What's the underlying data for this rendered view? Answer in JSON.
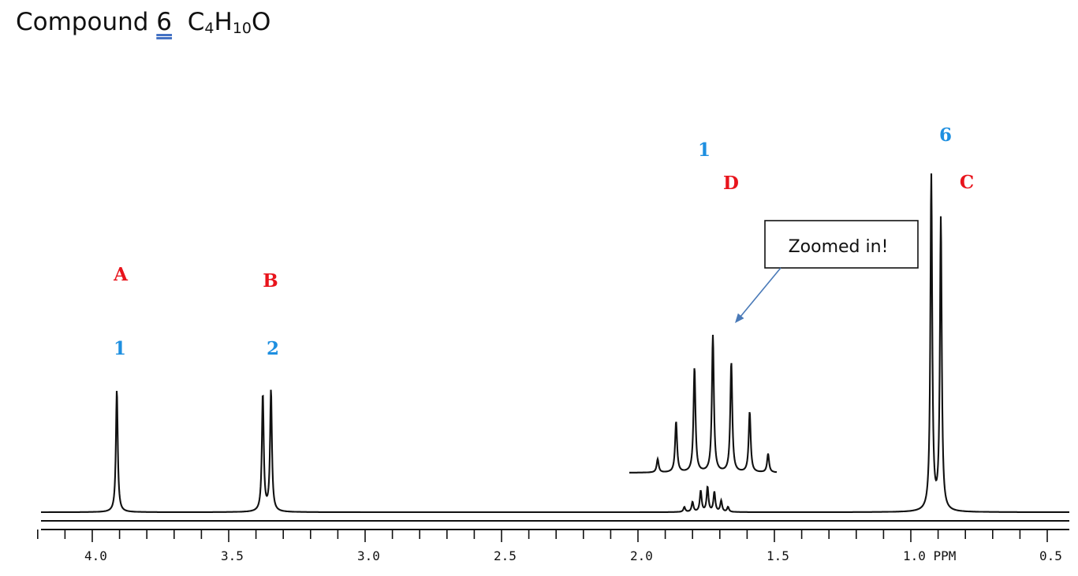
{
  "title": {
    "prefix": "Compound",
    "number": "6",
    "formula_c": "C",
    "formula_c_sub": "4",
    "formula_h": "H",
    "formula_h_sub": "10",
    "formula_o": "O"
  },
  "colors": {
    "letter_label": "#e8141c",
    "integration_label": "#1e8fe0",
    "trace": "#111111",
    "arrow": "#4a7ab8"
  },
  "chart_data": {
    "type": "line",
    "x_axis": {
      "range": [
        4.2,
        0.45
      ],
      "reversed": true,
      "tick_labels": [
        "4.0",
        "3.5",
        "3.0",
        "2.5",
        "2.0",
        "1.5",
        "1.0 PPM",
        "0.5"
      ],
      "tick_values": [
        4.0,
        3.5,
        3.0,
        2.5,
        2.0,
        1.5,
        1.0,
        0.5
      ],
      "minor_step": 0.1
    },
    "peaks": [
      {
        "letter": "A",
        "integration": "1",
        "multiplicity": "singlet",
        "lines": [
          {
            "ppm": 3.91,
            "height": 0.99
          }
        ]
      },
      {
        "letter": "B",
        "integration": "2",
        "multiplicity": "doublet",
        "lines": [
          {
            "ppm": 3.375,
            "height": 0.95
          },
          {
            "ppm": 3.345,
            "height": 0.98
          }
        ]
      },
      {
        "letter": "D",
        "integration": "1",
        "multiplicity": "multiplet",
        "lines": [
          {
            "ppm": 1.83,
            "height": 0.04
          },
          {
            "ppm": 1.8,
            "height": 0.08
          },
          {
            "ppm": 1.77,
            "height": 0.17
          },
          {
            "ppm": 1.745,
            "height": 0.2
          },
          {
            "ppm": 1.72,
            "height": 0.16
          },
          {
            "ppm": 1.695,
            "height": 0.09
          },
          {
            "ppm": 1.67,
            "height": 0.04
          }
        ]
      },
      {
        "letter": "C",
        "integration": "6",
        "multiplicity": "doublet",
        "lines": [
          {
            "ppm": 0.925,
            "height": 2.71
          },
          {
            "ppm": 0.89,
            "height": 2.36
          }
        ]
      }
    ],
    "inset": {
      "label": "Zoomed in!",
      "lines": [
        {
          "ppm": 1.92,
          "height": 0.18
        },
        {
          "ppm": 1.87,
          "height": 0.68
        },
        {
          "ppm": 1.82,
          "height": 1.4
        },
        {
          "ppm": 1.77,
          "height": 1.83
        },
        {
          "ppm": 1.72,
          "height": 1.47
        },
        {
          "ppm": 1.67,
          "height": 0.81
        },
        {
          "ppm": 1.62,
          "height": 0.25
        },
        {
          "ppm": 1.57,
          "height": 0.05
        }
      ],
      "range": [
        2.05,
        1.53
      ]
    }
  }
}
